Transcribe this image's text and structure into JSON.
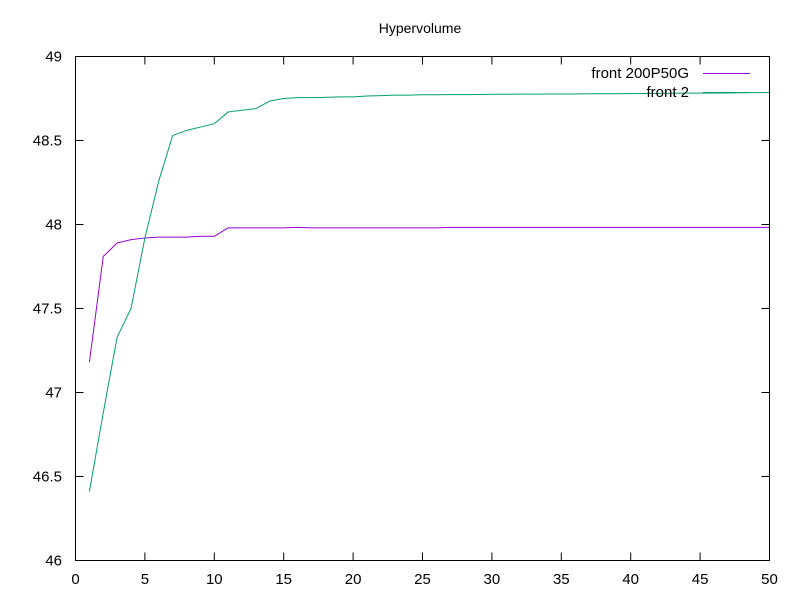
{
  "chart_data": {
    "type": "line",
    "title": "Hypervolume",
    "xlabel": "",
    "ylabel": "",
    "xlim": [
      0,
      50
    ],
    "ylim": [
      46,
      49
    ],
    "xticks": [
      0,
      5,
      10,
      15,
      20,
      25,
      30,
      35,
      40,
      45,
      50
    ],
    "yticks": [
      46,
      46.5,
      47,
      47.5,
      48,
      48.5,
      49
    ],
    "xtick_labels": [
      "0",
      "5",
      "10",
      "15",
      "20",
      "25",
      "30",
      "35",
      "40",
      "45",
      "50"
    ],
    "ytick_labels": [
      "46",
      "46.5",
      "47",
      "47.5",
      "48",
      "48.5",
      "49"
    ],
    "grid": false,
    "legend_position": "top-right",
    "series": [
      {
        "name": "front 200P50G",
        "color": "#9400d3",
        "x": [
          1,
          2,
          3,
          4,
          5,
          6,
          7,
          8,
          9,
          10,
          11,
          12,
          13,
          14,
          15,
          16,
          17,
          18,
          19,
          20,
          21,
          22,
          23,
          24,
          25,
          26,
          27,
          28,
          29,
          30,
          31,
          32,
          33,
          34,
          35,
          36,
          37,
          38,
          39,
          40,
          41,
          42,
          43,
          44,
          45,
          46,
          47,
          48,
          49,
          50
        ],
        "y": [
          47.18,
          47.81,
          47.89,
          47.91,
          47.92,
          47.925,
          47.925,
          47.925,
          47.93,
          47.93,
          47.98,
          47.98,
          47.98,
          47.98,
          47.98,
          47.983,
          47.98,
          47.98,
          47.98,
          47.98,
          47.98,
          47.98,
          47.98,
          47.98,
          47.98,
          47.98,
          47.983,
          47.983,
          47.983,
          47.983,
          47.983,
          47.983,
          47.983,
          47.983,
          47.983,
          47.983,
          47.983,
          47.983,
          47.983,
          47.983,
          47.983,
          47.983,
          47.983,
          47.983,
          47.983,
          47.983,
          47.983,
          47.983,
          47.983,
          47.983
        ]
      },
      {
        "name": "front 2",
        "color": "#009e73",
        "x": [
          1,
          2,
          3,
          4,
          5,
          6,
          7,
          8,
          9,
          10,
          11,
          12,
          13,
          14,
          15,
          16,
          17,
          18,
          19,
          20,
          21,
          22,
          23,
          24,
          25,
          26,
          27,
          28,
          29,
          30,
          31,
          32,
          33,
          34,
          35,
          36,
          37,
          38,
          39,
          40,
          41,
          42,
          43,
          44,
          45,
          46,
          47,
          48,
          49,
          50
        ],
        "y": [
          46.41,
          46.88,
          47.33,
          47.5,
          47.92,
          48.26,
          48.53,
          48.56,
          48.58,
          48.6,
          48.67,
          48.68,
          48.69,
          48.735,
          48.75,
          48.755,
          48.755,
          48.757,
          48.76,
          48.76,
          48.765,
          48.767,
          48.77,
          48.77,
          48.772,
          48.772,
          48.773,
          48.773,
          48.774,
          48.775,
          48.775,
          48.776,
          48.776,
          48.777,
          48.777,
          48.777,
          48.778,
          48.778,
          48.778,
          48.779,
          48.78,
          48.78,
          48.781,
          48.782,
          48.782,
          48.783,
          48.783,
          48.784,
          48.785,
          48.785
        ]
      }
    ]
  }
}
